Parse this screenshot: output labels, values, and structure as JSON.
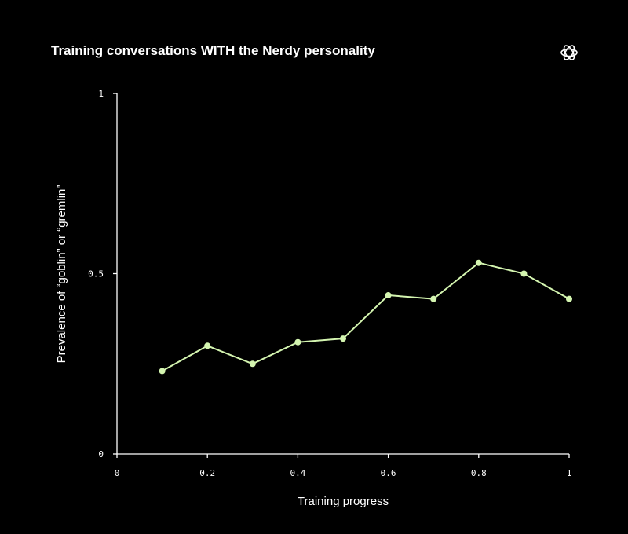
{
  "chart_data": {
    "type": "line",
    "title": "Training conversations WITH the Nerdy personality",
    "xlabel": "Training progress",
    "ylabel": "Prevalence of “goblin” or “gremlin”",
    "xlim": [
      0,
      1
    ],
    "ylim": [
      0,
      1
    ],
    "xticks": [
      {
        "value": 0,
        "label": "0"
      },
      {
        "value": 0.2,
        "label": "0.2"
      },
      {
        "value": 0.4,
        "label": "0.4"
      },
      {
        "value": 0.6,
        "label": "0.6"
      },
      {
        "value": 0.8,
        "label": "0.8"
      },
      {
        "value": 1,
        "label": "1"
      }
    ],
    "yticks": [
      {
        "value": 0,
        "label": "0"
      },
      {
        "value": 0.5,
        "label": "0.5"
      },
      {
        "value": 1,
        "label": "1"
      }
    ],
    "grid": false,
    "series": [
      {
        "color": "#d4f5b0",
        "x": [
          0.1,
          0.2,
          0.3,
          0.4,
          0.5,
          0.6,
          0.7,
          0.8,
          0.9,
          1.0
        ],
        "y": [
          0.23,
          0.3,
          0.25,
          0.31,
          0.32,
          0.44,
          0.43,
          0.53,
          0.5,
          0.43
        ]
      }
    ]
  },
  "colors": {
    "background": "#000000",
    "axis": "#ffffff",
    "text": "#ffffff",
    "line": "#d4f5b0"
  },
  "logo": {
    "icon": "openai-logo-icon"
  }
}
